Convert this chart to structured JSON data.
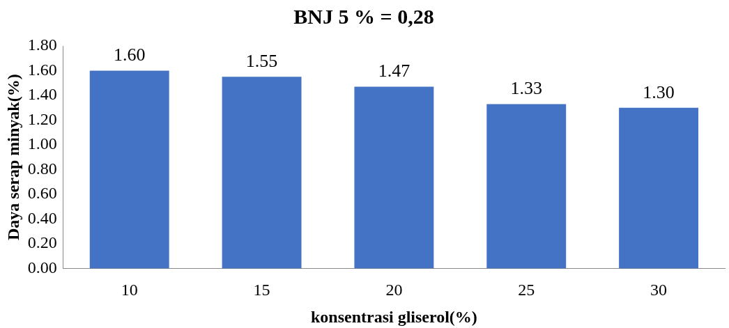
{
  "chart_data": {
    "type": "bar",
    "title": "BNJ 5 % = 0,28",
    "xlabel": "konsentrasi gliserol(%)",
    "ylabel": "Daya serap minyak(%)",
    "categories": [
      "10",
      "15",
      "20",
      "25",
      "30"
    ],
    "values": [
      1.6,
      1.55,
      1.47,
      1.33,
      1.3
    ],
    "value_labels": [
      "1.60",
      "1.55",
      "1.47",
      "1.33",
      "1.30"
    ],
    "color": "#4472c4",
    "ylim": [
      0,
      1.8
    ],
    "yticks": [
      {
        "value": 0,
        "label": "0.00"
      },
      {
        "value": 0.2,
        "label": "0.20"
      },
      {
        "value": 0.4,
        "label": "0.40"
      },
      {
        "value": 0.6,
        "label": "0.60"
      },
      {
        "value": 0.8,
        "label": "0.80"
      },
      {
        "value": 1,
        "label": "1.00"
      },
      {
        "value": 1.2,
        "label": "1.20"
      },
      {
        "value": 1.4,
        "label": "1.40"
      },
      {
        "value": 1.6,
        "label": "1.60"
      },
      {
        "value": 1.8,
        "label": "1.80"
      }
    ],
    "grid": false,
    "legend": false
  }
}
